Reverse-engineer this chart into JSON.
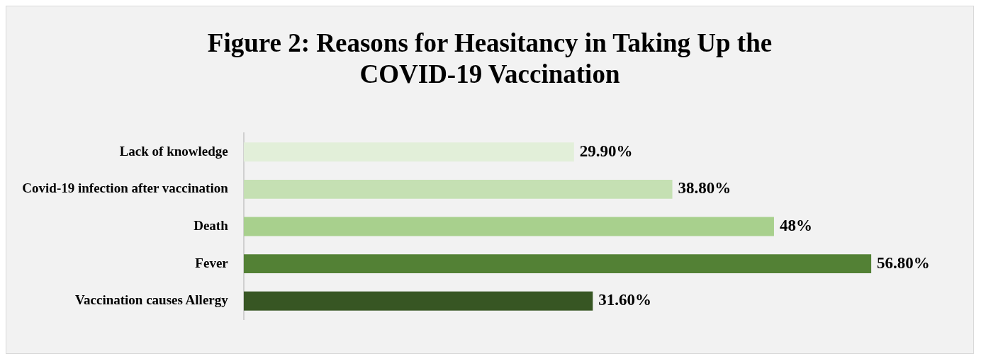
{
  "chart_data": {
    "type": "bar",
    "orientation": "horizontal",
    "title": "Figure 2: Reasons for Heasitancy in Taking Up the COVID-19 Vaccination",
    "categories": [
      "Lack of knowledge",
      "Covid-19 infection after vaccination",
      "Death",
      "Fever",
      "Vaccination causes Allergy"
    ],
    "values": [
      29.9,
      38.8,
      48,
      56.8,
      31.6
    ],
    "value_labels": [
      "29.90%",
      "38.80%",
      "48%",
      "56.80%",
      "31.60%"
    ],
    "colors": [
      "#e2efd9",
      "#c5e0b3",
      "#a8d08d",
      "#538135",
      "#375623"
    ],
    "legend": false
  }
}
